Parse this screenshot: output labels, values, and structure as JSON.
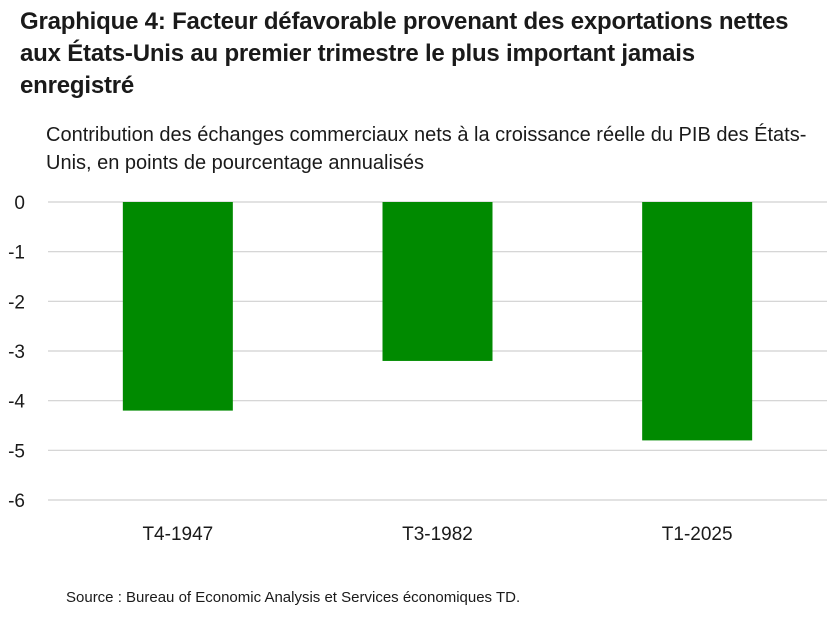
{
  "title": "Graphique 4: Facteur défavorable provenant des exportations nettes aux États-Unis au premier trimestre le plus important jamais enregistré",
  "subtitle": "Contribution des échanges commerciaux nets à la croissance réelle du PIB des États-Unis, en points de pourcentage annualisés",
  "source": "Source : Bureau of Economic Analysis et Services économiques TD.",
  "chart_data": {
    "type": "bar",
    "title": "Graphique 4: Facteur défavorable provenant des exportations nettes aux États-Unis au premier trimestre le plus important jamais enregistré",
    "subtitle": "Contribution des échanges commerciaux nets à la croissance réelle du PIB des États-Unis, en points de pourcentage annualisés",
    "categories": [
      "T4-1947",
      "T3-1982",
      "T1-2025"
    ],
    "values": [
      -4.2,
      -3.2,
      -4.8
    ],
    "ylim": [
      -6,
      0
    ],
    "yticks": [
      0,
      -1,
      -2,
      -3,
      -4,
      -5,
      -6
    ],
    "grid": true,
    "bar_color": "#008a00",
    "grid_color": "#d0d0d0"
  }
}
